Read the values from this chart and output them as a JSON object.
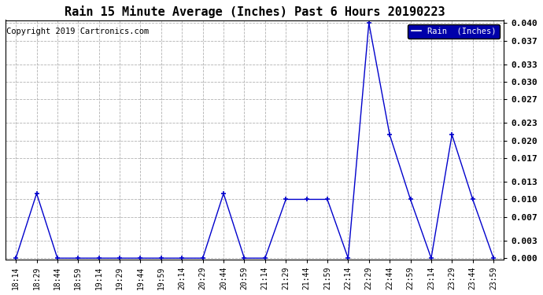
{
  "title": "Rain 15 Minute Average (Inches) Past 6 Hours 20190223",
  "copyright": "Copyright 2019 Cartronics.com",
  "legend_label": "Rain  (Inches)",
  "line_color": "#0000CC",
  "legend_bg": "#0000AA",
  "legend_text_color": "#FFFFFF",
  "background_color": "#FFFFFF",
  "grid_color": "#AAAAAA",
  "x_labels": [
    "18:14",
    "18:29",
    "18:44",
    "18:59",
    "19:14",
    "19:29",
    "19:44",
    "19:59",
    "20:14",
    "20:29",
    "20:44",
    "20:59",
    "21:14",
    "21:29",
    "21:44",
    "21:59",
    "22:14",
    "22:29",
    "22:44",
    "22:59",
    "23:14",
    "23:29",
    "23:44",
    "23:59"
  ],
  "y_values": [
    0.0,
    0.011,
    0.0,
    0.0,
    0.0,
    0.0,
    0.0,
    0.0,
    0.0,
    0.0,
    0.011,
    0.0,
    0.0,
    0.01,
    0.01,
    0.01,
    0.0,
    0.04,
    0.021,
    0.01,
    0.0,
    0.021,
    0.01,
    0.0
  ],
  "ylim": [
    0.0,
    0.04
  ],
  "yticks": [
    0.0,
    0.003,
    0.007,
    0.01,
    0.013,
    0.017,
    0.02,
    0.023,
    0.027,
    0.03,
    0.033,
    0.037,
    0.04
  ],
  "title_fontsize": 11,
  "copyright_fontsize": 7.5,
  "tick_fontsize": 7,
  "ytick_fontsize": 8
}
